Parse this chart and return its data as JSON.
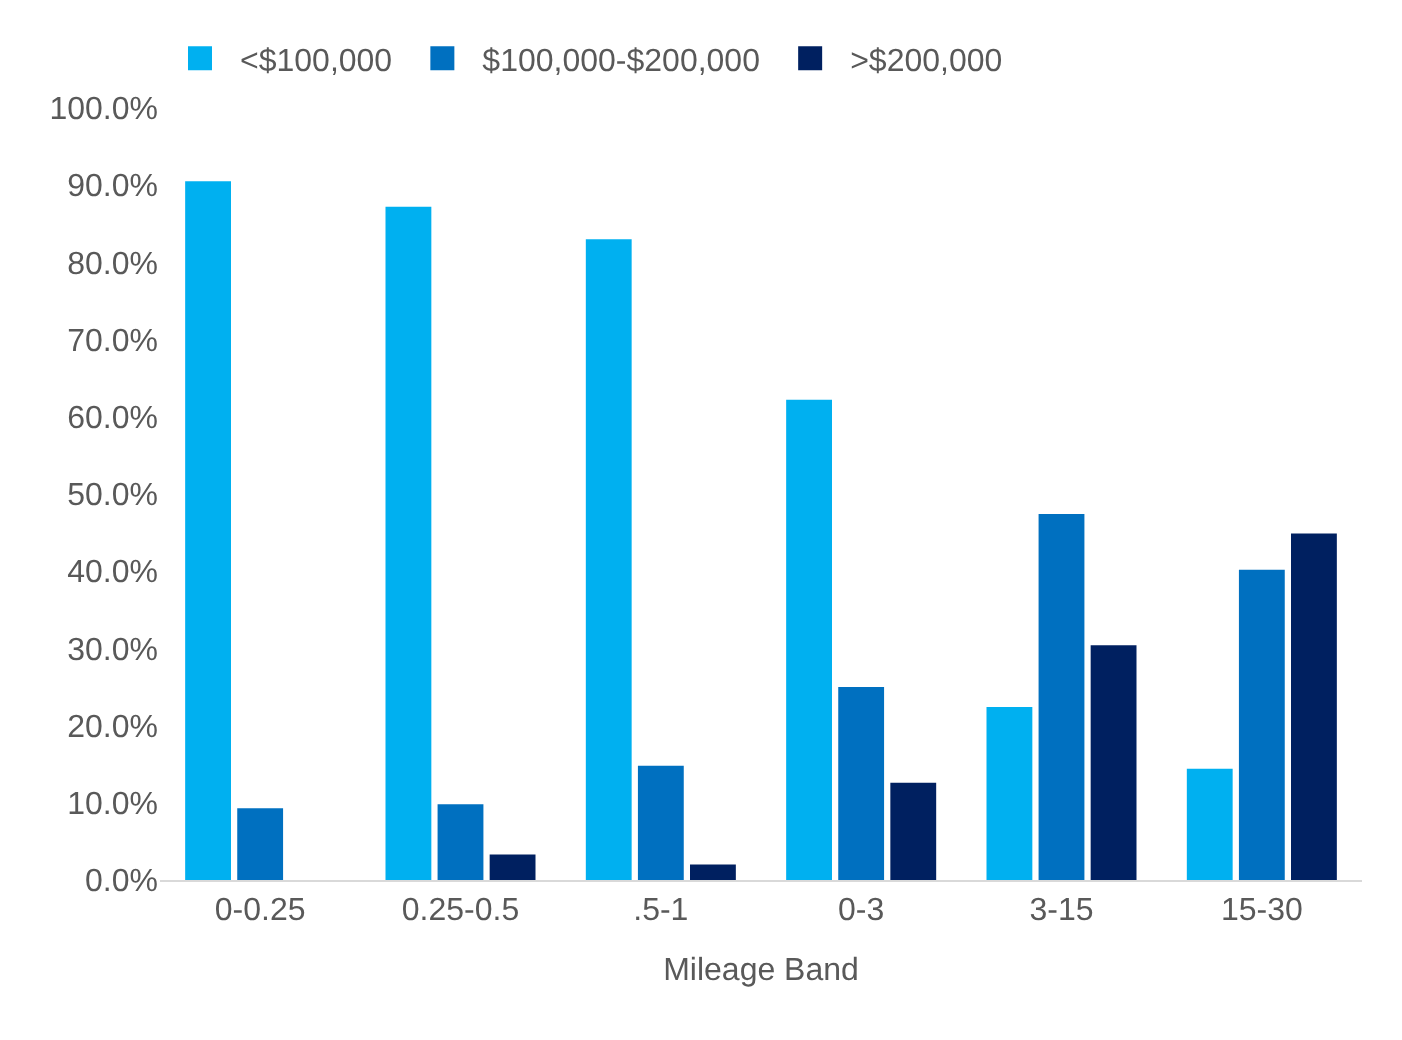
{
  "chart_data": {
    "type": "bar",
    "xlabel": "Mileage Band",
    "categories": [
      "0-0.25",
      "0.25-0.5",
      ".5-1",
      "0-3",
      "3-15",
      "15-30"
    ],
    "series": [
      {
        "name": "<$100,000",
        "color": "#00b0f0",
        "values": [
          90.5,
          87.2,
          83.0,
          62.2,
          22.4,
          14.4
        ]
      },
      {
        "name": "$100,000-$200,000",
        "color": "#0070c0",
        "values": [
          9.3,
          9.8,
          14.8,
          25.0,
          47.4,
          40.2
        ]
      },
      {
        "name": ">$200,000",
        "color": "#002060",
        "values": [
          0,
          3.3,
          2.0,
          12.6,
          30.4,
          44.9
        ]
      }
    ],
    "ylim": [
      0,
      100
    ],
    "yticks": [
      {
        "value": 0,
        "label": "0.0%"
      },
      {
        "value": 10,
        "label": "10.0%"
      },
      {
        "value": 20,
        "label": "20.0%"
      },
      {
        "value": 30,
        "label": "30.0%"
      },
      {
        "value": 40,
        "label": "40.0%"
      },
      {
        "value": 50,
        "label": "50.0%"
      },
      {
        "value": 60,
        "label": "60.0%"
      },
      {
        "value": 70,
        "label": "70.0%"
      },
      {
        "value": 80,
        "label": "80.0%"
      },
      {
        "value": 90,
        "label": "90.0%"
      },
      {
        "value": 100,
        "label": "100.0%"
      }
    ],
    "legend": "top"
  }
}
